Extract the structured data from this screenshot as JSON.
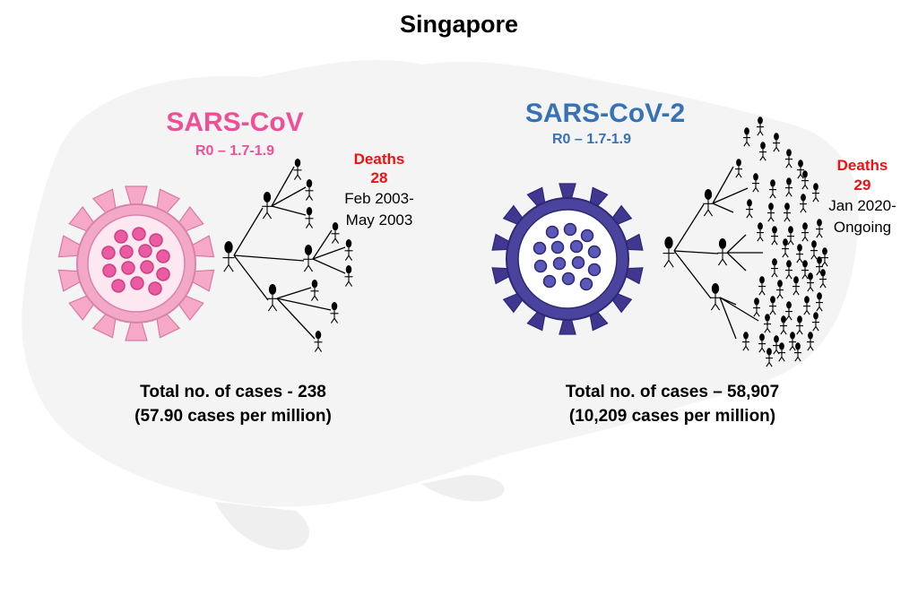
{
  "title": "Singapore",
  "colors": {
    "sars_cov": "#ef4f97",
    "sars_cov_2": "#3672b5",
    "deaths": "#ee1111",
    "virus1_fill": "#f4a8c8",
    "virus2_fill": "#4b449e",
    "map_fill": "#f3f3f3"
  },
  "left": {
    "name": "SARS-CoV",
    "r0": "R0 – 1.7-1.9",
    "deaths_label": "Deaths",
    "deaths_count": "28",
    "period_line1": "Feb 2003-",
    "period_line2": "May 2003",
    "total_line1": "Total no. of cases - 238",
    "total_line2": "(57.90 cases per million)"
  },
  "right": {
    "name": "SARS-CoV-2",
    "r0": "R0 – 1.7-1.9",
    "deaths_label": "Deaths",
    "deaths_count": "29",
    "period_line1": "Jan 2020-",
    "period_line2": "Ongoing",
    "total_line1": "Total no. of cases – 58,907",
    "total_line2": "(10,209 cases per million)"
  },
  "icons": {
    "virus_left": "coronavirus-icon",
    "virus_right": "coronavirus-icon",
    "person": "person-icon"
  }
}
